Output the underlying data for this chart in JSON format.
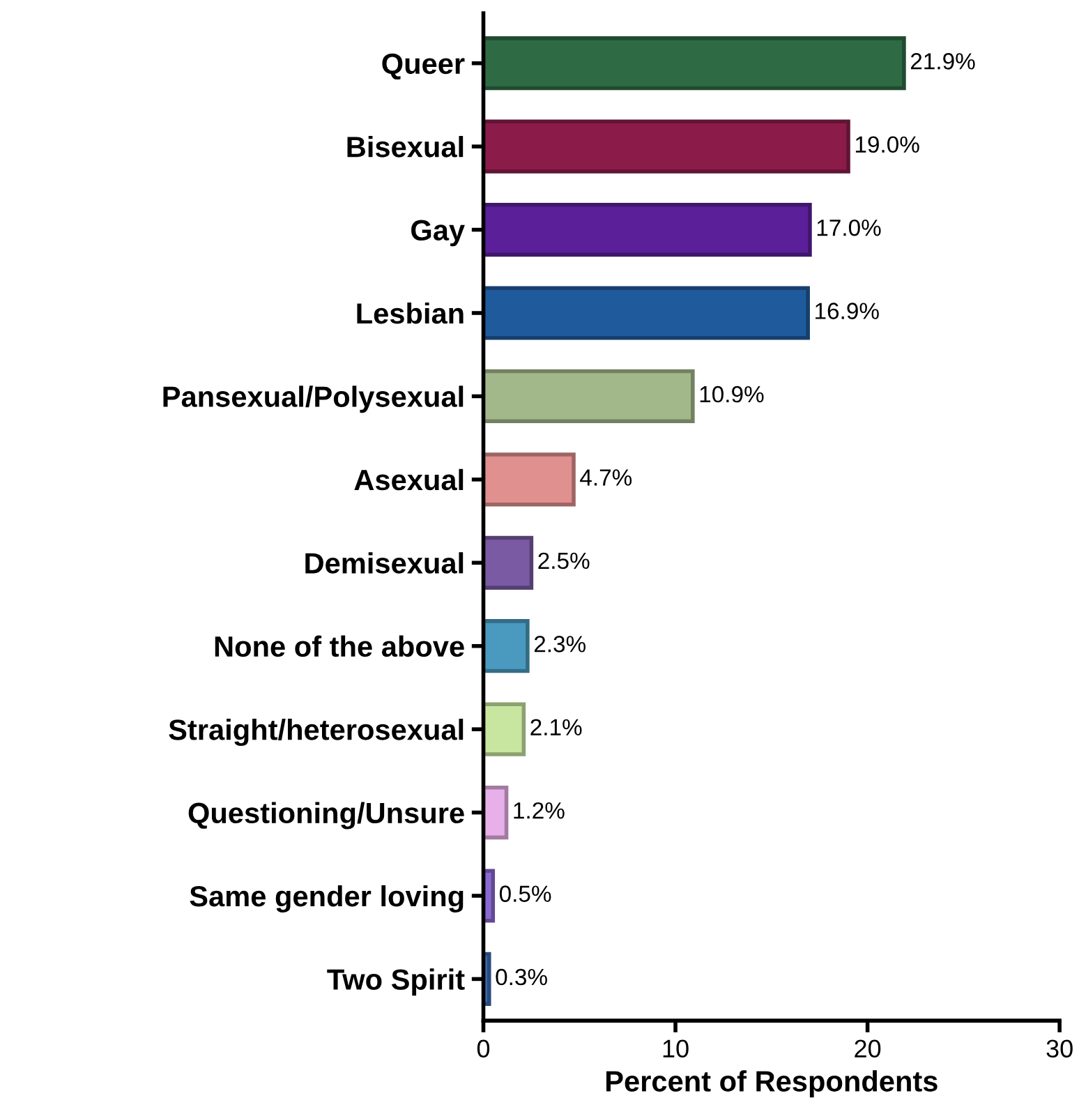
{
  "chart_data": {
    "type": "bar",
    "orientation": "horizontal",
    "xlabel": "Percent of Respondents",
    "categories": [
      "Queer",
      "Bisexual",
      "Gay",
      "Lesbian",
      "Pansexual/Polysexual",
      "Asexual",
      "Demisexual",
      "None of the above",
      "Straight/heterosexual",
      "Questioning/Unsure",
      "Same gender loving",
      "Two Spirit"
    ],
    "values": [
      21.9,
      19.0,
      17.0,
      16.9,
      10.9,
      4.7,
      2.5,
      2.3,
      2.1,
      1.2,
      0.5,
      0.3
    ],
    "value_labels": [
      "21.9%",
      "19.0%",
      "17.0%",
      "16.9%",
      "10.9%",
      "4.7%",
      "2.5%",
      "2.3%",
      "2.1%",
      "1.2%",
      "0.5%",
      "0.3%"
    ],
    "colors": [
      "#2e6b45",
      "#8b1c4a",
      "#5b1f9a",
      "#1f5a9c",
      "#a3b88a",
      "#e0908e",
      "#7a5aa3",
      "#4a9ac0",
      "#c8e6a0",
      "#e8b0e8",
      "#8a6ad0",
      "#3a6ab0"
    ],
    "xlim": [
      0,
      30
    ],
    "xticks": [
      0,
      10,
      20,
      30
    ],
    "grid": false,
    "legend": false
  }
}
